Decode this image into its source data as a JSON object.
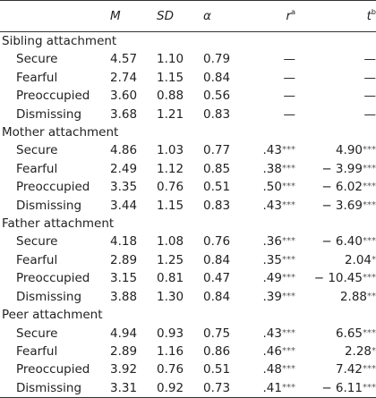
{
  "header": {
    "mean": "M",
    "sd": "SD",
    "alpha": "α",
    "r": "r",
    "r_sup": "a",
    "t": "t",
    "t_sup": "b"
  },
  "sections": [
    {
      "title": "Sibling attachment",
      "rows": [
        {
          "label": "Secure",
          "m": "4.57",
          "sd": "1.10",
          "alpha": "0.79",
          "r": "—",
          "r_sig": "",
          "t": "—",
          "t_sig": ""
        },
        {
          "label": "Fearful",
          "m": "2.74",
          "sd": "1.15",
          "alpha": "0.84",
          "r": "—",
          "r_sig": "",
          "t": "—",
          "t_sig": ""
        },
        {
          "label": "Preoccupied",
          "m": "3.60",
          "sd": "0.88",
          "alpha": "0.56",
          "r": "—",
          "r_sig": "",
          "t": "—",
          "t_sig": ""
        },
        {
          "label": "Dismissing",
          "m": "3.68",
          "sd": "1.21",
          "alpha": "0.83",
          "r": "—",
          "r_sig": "",
          "t": "—",
          "t_sig": ""
        }
      ]
    },
    {
      "title": "Mother attachment",
      "rows": [
        {
          "label": "Secure",
          "m": "4.86",
          "sd": "1.03",
          "alpha": "0.77",
          "r": ".43",
          "r_sig": "***",
          "t": "4.90",
          "t_sig": "***"
        },
        {
          "label": "Fearful",
          "m": "2.49",
          "sd": "1.12",
          "alpha": "0.85",
          "r": ".38",
          "r_sig": "***",
          "t": "− 3.99",
          "t_sig": "***"
        },
        {
          "label": "Preoccupied",
          "m": "3.35",
          "sd": "0.76",
          "alpha": "0.51",
          "r": ".50",
          "r_sig": "***",
          "t": "− 6.02",
          "t_sig": "***"
        },
        {
          "label": "Dismissing",
          "m": "3.44",
          "sd": "1.15",
          "alpha": "0.83",
          "r": ".43",
          "r_sig": "***",
          "t": "− 3.69",
          "t_sig": "***"
        }
      ]
    },
    {
      "title": "Father attachment",
      "rows": [
        {
          "label": "Secure",
          "m": "4.18",
          "sd": "1.08",
          "alpha": "0.76",
          "r": ".36",
          "r_sig": "***",
          "t": "− 6.40",
          "t_sig": "***"
        },
        {
          "label": "Fearful",
          "m": "2.89",
          "sd": "1.25",
          "alpha": "0.84",
          "r": ".35",
          "r_sig": "***",
          "t": "2.04",
          "t_sig": "*"
        },
        {
          "label": "Preoccupied",
          "m": "3.15",
          "sd": "0.81",
          "alpha": "0.47",
          "r": ".49",
          "r_sig": "***",
          "t": "− 10.45",
          "t_sig": "***"
        },
        {
          "label": "Dismissing",
          "m": "3.88",
          "sd": "1.30",
          "alpha": "0.84",
          "r": ".39",
          "r_sig": "***",
          "t": "2.88",
          "t_sig": "**"
        }
      ]
    },
    {
      "title": "Peer attachment",
      "rows": [
        {
          "label": "Secure",
          "m": "4.94",
          "sd": "0.93",
          "alpha": "0.75",
          "r": ".43",
          "r_sig": "***",
          "t": "6.65",
          "t_sig": "***"
        },
        {
          "label": "Fearful",
          "m": "2.89",
          "sd": "1.16",
          "alpha": "0.86",
          "r": ".46",
          "r_sig": "***",
          "t": "2.28",
          "t_sig": "*"
        },
        {
          "label": "Preoccupied",
          "m": "3.92",
          "sd": "0.76",
          "alpha": "0.51",
          "r": ".48",
          "r_sig": "***",
          "t": "7.42",
          "t_sig": "***"
        },
        {
          "label": "Dismissing",
          "m": "3.31",
          "sd": "0.92",
          "alpha": "0.73",
          "r": ".41",
          "r_sig": "***",
          "t": "− 6.11",
          "t_sig": "***"
        }
      ]
    }
  ]
}
